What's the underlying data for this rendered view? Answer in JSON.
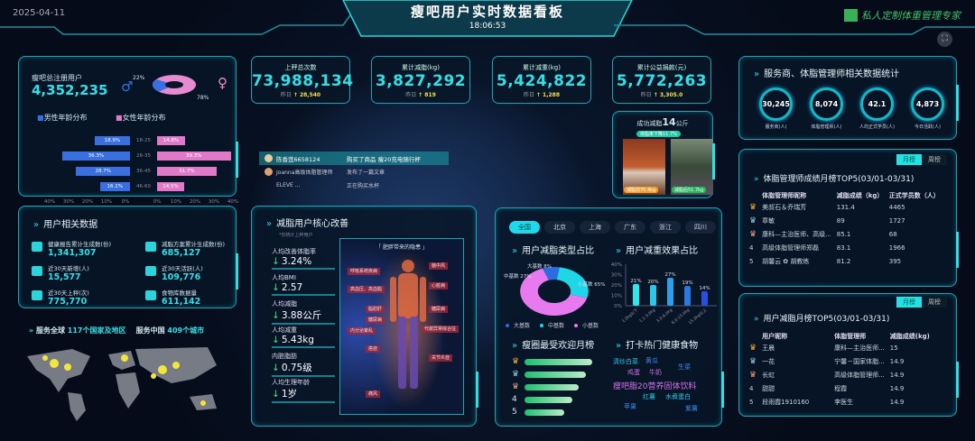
{
  "header": {
    "date": "2025-04-11",
    "title": "瘦吧用户实时数据看板",
    "time": "18:06:53",
    "logo_text": "私人定制体重管理专家",
    "fullscreen_icon": "fullscreen-icon"
  },
  "users_panel": {
    "label": "瘦吧总注册用户",
    "total": "4,352,235",
    "male_pct": "22%",
    "female_pct": "78%",
    "male_share": 22,
    "female_share": 78,
    "legend_male": "男性年龄分布",
    "legend_female": "女性年龄分布",
    "age_groups": [
      "18-25",
      "26-35",
      "36-45",
      "46-60"
    ],
    "male": [
      18.9,
      36.3,
      28.7,
      16.1
    ],
    "female": [
      14.8,
      39.3,
      31.7,
      14.5
    ],
    "male_labels": [
      "18.9%",
      "36.3%",
      "28.7%",
      "16.1%"
    ],
    "female_labels": [
      "14.8%",
      "39.3%",
      "31.7%",
      "14.5%"
    ],
    "axis_left": [
      "40%",
      "30%",
      "20%",
      "10%",
      "0%"
    ],
    "axis_right": [
      "0%",
      "10%",
      "20%",
      "30%",
      "40%"
    ],
    "colors": {
      "male": "#3a6fe0",
      "female": "#e07ac8"
    }
  },
  "stats": [
    {
      "label": "上秤总次数",
      "value": "73,988,134",
      "yesterday_label": "昨日",
      "yesterday": "28,540"
    },
    {
      "label": "累计减脂(kg)",
      "value": "3,827,292",
      "yesterday_label": "昨日",
      "yesterday": "819"
    },
    {
      "label": "累计减重(kg)",
      "value": "5,424,822",
      "yesterday_label": "昨日",
      "yesterday": "1,288"
    },
    {
      "label": "累计公益捐款(元)",
      "value": "5,772,263",
      "yesterday_label": "昨日",
      "yesterday": "3,305.0"
    }
  ],
  "success": {
    "title_a": "成功减脂",
    "num": "14",
    "unit": "公斤",
    "badge": "体脂率下降11.7%",
    "before": "减脂前70.4kg",
    "after": "减脂后51.7kg"
  },
  "feed": [
    {
      "user": "陈香莲6658124",
      "action": "购买了商品 瘦20充电随行杯"
    },
    {
      "user": "Joanna高级体脂管理师",
      "action": "发布了一篇文章"
    },
    {
      "user": "ELEVE ...",
      "action": "正在购买水杯"
    }
  ],
  "user_data": {
    "title": "用户相关数据",
    "items": [
      {
        "label": "健康报告累计生成数(份)",
        "value": "1,341,307",
        "icon": "report-icon"
      },
      {
        "label": "减脂方案累计生成数(份)",
        "value": "685,127",
        "icon": "plan-icon"
      },
      {
        "label": "近30天新增(人)",
        "value": "15,577",
        "icon": "user-add-icon"
      },
      {
        "label": "近30天活跃(人)",
        "value": "109,776",
        "icon": "user-active-icon"
      },
      {
        "label": "近30天上秤(次)",
        "value": "775,770",
        "icon": "scale-icon"
      },
      {
        "label": "食物库数据量",
        "value": "611,142",
        "icon": "book-icon"
      }
    ]
  },
  "global": {
    "a": "服务全球",
    "b": "117个国家及地区",
    "c": "服务中国",
    "d": "409个城市"
  },
  "core": {
    "title": "减脂用户核心改善",
    "note": "*仅统计上秤用户",
    "metrics": [
      {
        "label": "人均改善体脂率",
        "value": "3.24%"
      },
      {
        "label": "人均BMI",
        "value": "2.57"
      },
      {
        "label": "人均减脂",
        "value": "3.88公斤"
      },
      {
        "label": "人均减重",
        "value": "5.43kg"
      },
      {
        "label": "内脏脂肪",
        "value": "0.75级"
      },
      {
        "label": "人均生理年龄",
        "value": "1岁"
      }
    ],
    "body_title": "「 肥胖带来的隐患 」",
    "body_left": [
      "呼吸系统疾病",
      "高血压、高血脂",
      "脂肪肝",
      "糖尿病",
      "内分泌紊乱",
      "癌症",
      "痛风"
    ],
    "body_right": [
      "脑中风",
      "心脏病",
      "糖尿病",
      "代谢异常综合征",
      "关节炎症"
    ]
  },
  "region": {
    "tabs": [
      "全国",
      "北京",
      "上海",
      "广东",
      "浙江",
      "四川"
    ],
    "active": 0,
    "type_title": "用户减脂类型占比",
    "effect_title": "用户减重效果占比",
    "popular_title": "瘦圈最受欢迎月榜",
    "food_title": "打卡热门健康食物",
    "popular_fill": [
      1.0,
      0.9,
      0.8,
      0.7,
      0.58
    ],
    "foods": [
      "清炒白菜",
      "黄瓜",
      "生菜",
      "鸡蛋",
      "牛奶",
      "瘦吧脂20营养固体饮料",
      "红薯",
      "水煮蛋白",
      "苹果",
      "紫薯"
    ]
  },
  "chart_data": [
    {
      "type": "pie",
      "categories": [
        "大基数",
        "中基数",
        "小基数"
      ],
      "values": [
        8,
        27,
        65
      ],
      "labels": [
        "8%",
        "27%",
        "65%"
      ],
      "colors": [
        "#2a6de0",
        "#1fd6e6",
        "#e87af0"
      ],
      "legend": "bottom"
    },
    {
      "type": "bar",
      "categories": [
        "1.0kg以下",
        "1.1-3.0kg",
        "3.0-6.0kg",
        "6.0-15.0kg",
        "15.0kg以上"
      ],
      "values": [
        21,
        20,
        27,
        19,
        14
      ],
      "labels": [
        "21%",
        "20%",
        "27%",
        "19%",
        "14%"
      ],
      "yticks": [
        "0%",
        "10%",
        "20%",
        "30%",
        "40%"
      ],
      "ylim": [
        0,
        40
      ],
      "colors": [
        "#2ee6ec",
        "#2cc6e8",
        "#2aa0e8",
        "#2a78e4",
        "#2a4ee0"
      ]
    }
  ],
  "service": {
    "title": "服务商、体脂管理师相关数据统计",
    "items": [
      {
        "value": "30,245",
        "label": "服务商(人)"
      },
      {
        "value": "8,074",
        "label": "体脂管理师(人)"
      },
      {
        "value": "42.1",
        "label": "人均正式学员(人)"
      },
      {
        "value": "4,873",
        "label": "今日活跃(人)"
      }
    ]
  },
  "coach_rank": {
    "tabs": [
      "月榜",
      "周榜"
    ],
    "title": "体脂管理师成绩月榜TOP5(03/01-03/31)",
    "headers": [
      "体脂管理师昵称",
      "减脂成绩（kg）",
      "正式学员数（人）"
    ],
    "rows": [
      [
        "1",
        "美叔石＆乔瑞芳",
        "131.4",
        "4465"
      ],
      [
        "2",
        "章敏",
        "89",
        "1727"
      ],
      [
        "3",
        "康科—主治医师、高级...",
        "85.1",
        "68"
      ],
      [
        "4",
        "高级体脂管理师郑磊",
        "83.1",
        "1966"
      ],
      [
        "5",
        "胡馨云 ✿ 胡教练",
        "81.2",
        "395"
      ]
    ]
  },
  "user_rank": {
    "tabs": [
      "月榜",
      "周榜"
    ],
    "title": "用户减脂月榜TOP5(03/01-03/31)",
    "headers": [
      "用户昵称",
      "体脂管理师",
      "减脂成绩(kg)"
    ],
    "rows": [
      [
        "1",
        "王晨",
        "康科—主治医师...",
        "15"
      ],
      [
        "2",
        "一花",
        "宁馨－国家体脂...",
        "14.9"
      ],
      [
        "3",
        "长虹",
        "高级体脂管理师...",
        "14.9"
      ],
      [
        "4",
        "甜甜",
        "程霞",
        "14.9"
      ],
      [
        "5",
        "段雨霞1910160",
        "李医生",
        "14.9"
      ]
    ]
  }
}
